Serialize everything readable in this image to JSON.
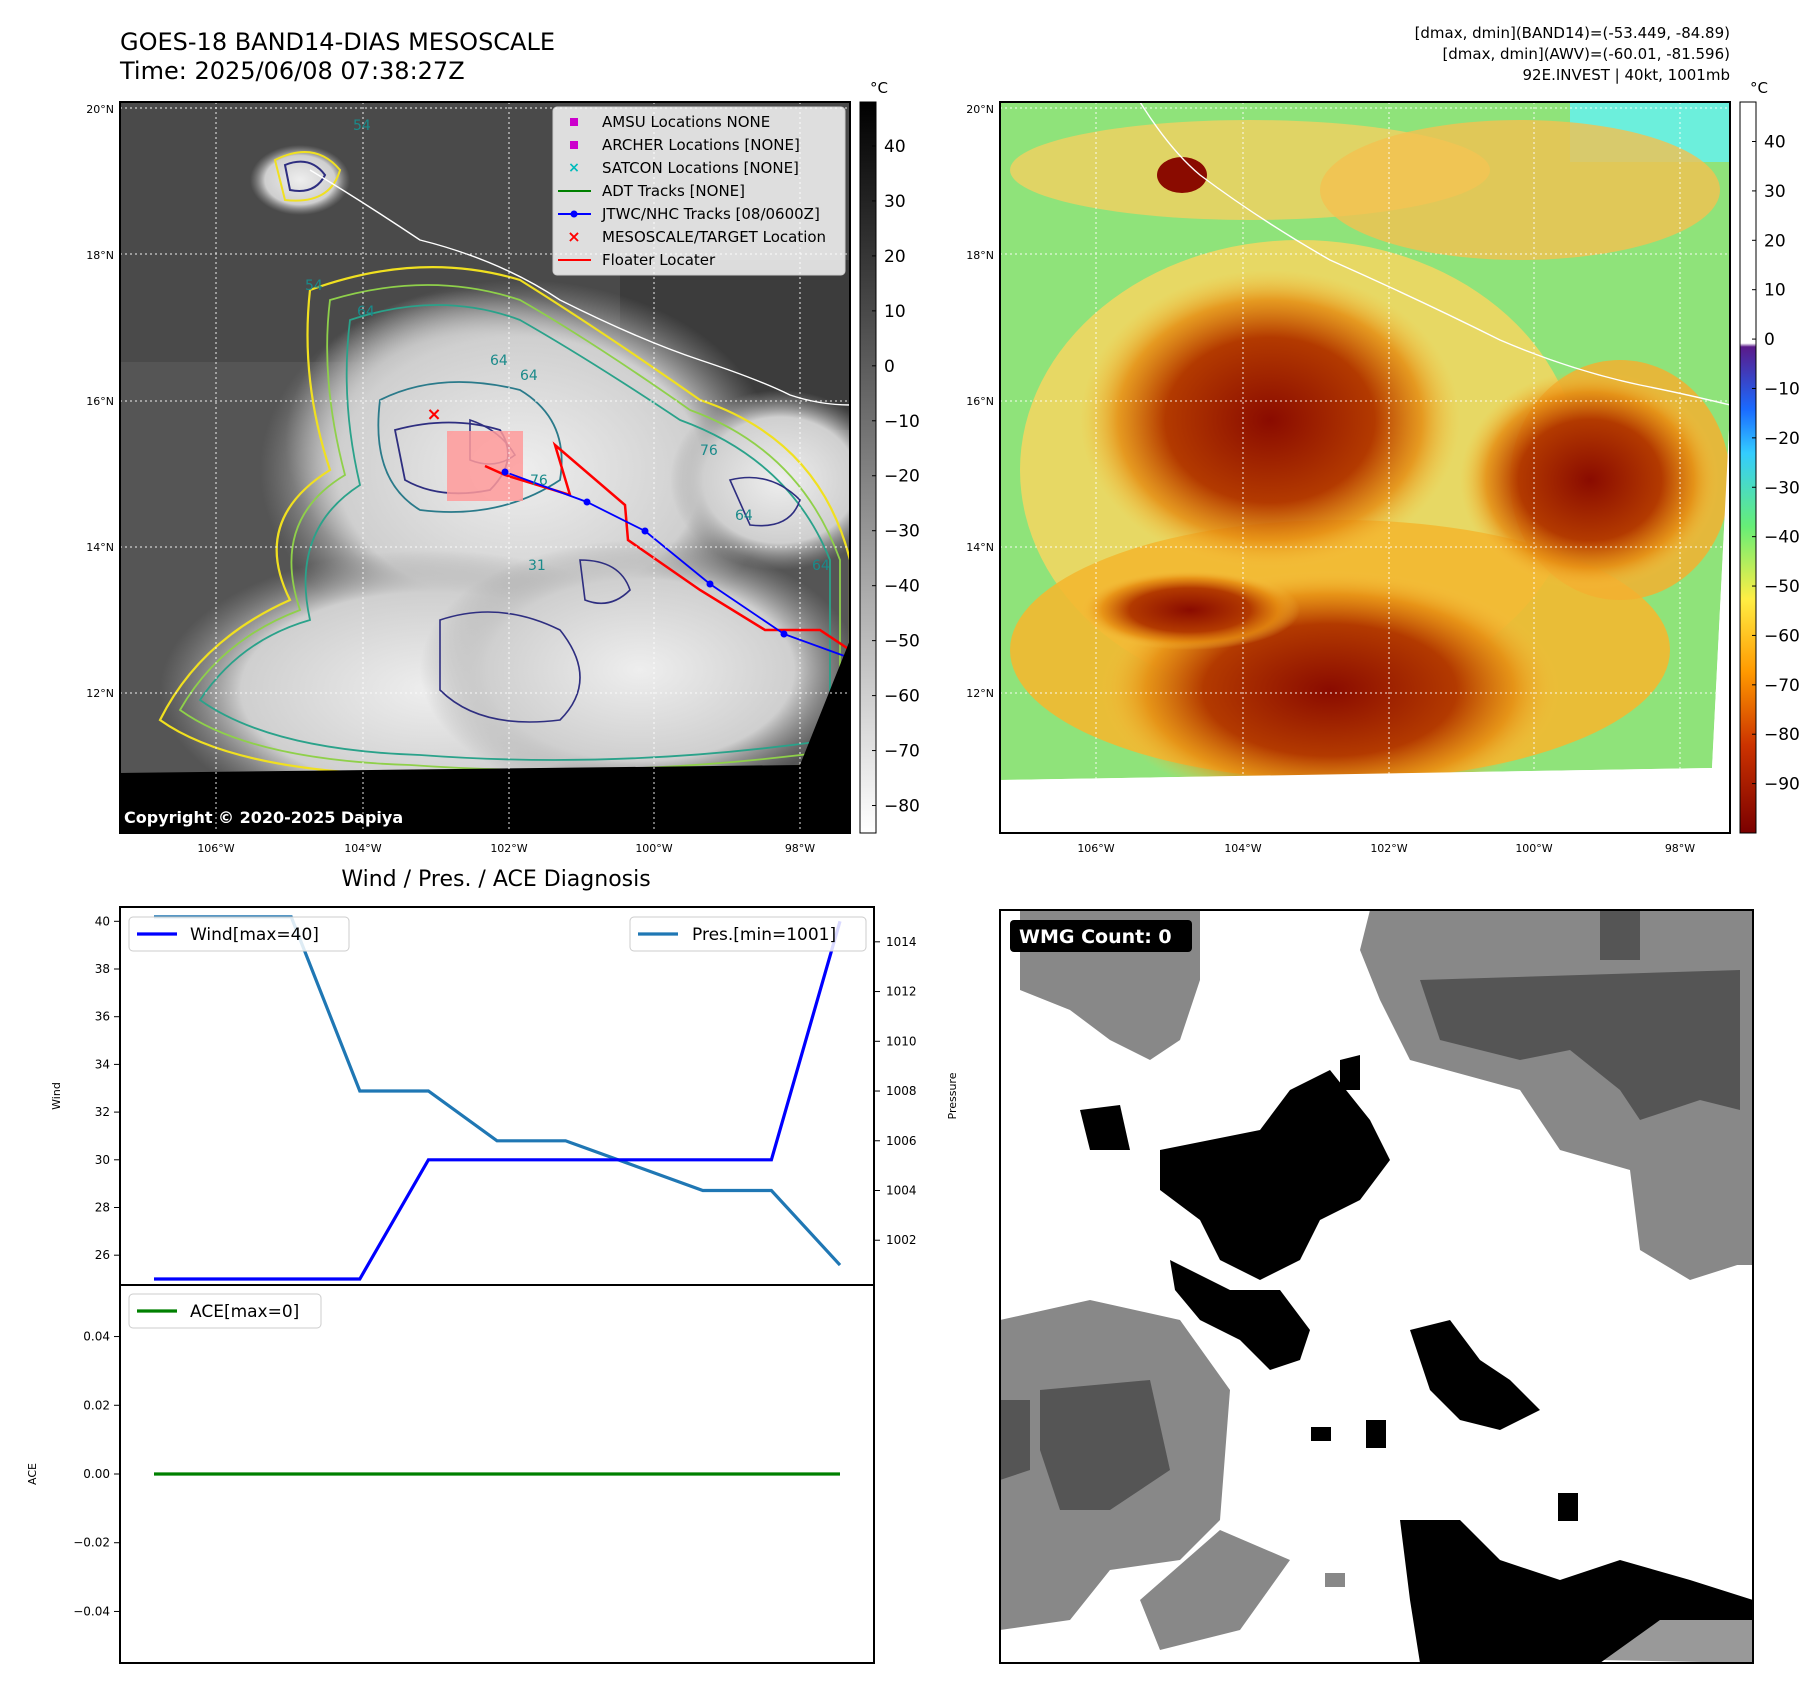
{
  "header": {
    "title_line1": "GOES-18 BAND14-DIAS MESOSCALE",
    "title_line2": "Time: 2025/06/08 07:38:27Z",
    "right_line1": "[dmax, dmin](BAND14)=(-53.449, -84.89)",
    "right_line2": "[dmax, dmin](AWV)=(-60.01, -81.596)",
    "right_line3": "92E.INVEST | 40kt, 1001mb"
  },
  "map_common": {
    "lat_labels": [
      "20°N",
      "18°N",
      "16°N",
      "14°N",
      "12°N"
    ],
    "lon_labels": [
      "106°W",
      "104°W",
      "102°W",
      "100°W",
      "98°W"
    ],
    "colorbar_unit": "°C"
  },
  "map_left": {
    "copyright": "Copyright © 2020-2025 Dapiya",
    "colorbar_ticks": [
      "40",
      "30",
      "20",
      "10",
      "0",
      "−10",
      "−20",
      "−30",
      "−40",
      "−50",
      "−60",
      "−70",
      "−80"
    ],
    "contour_labels": [
      "54",
      "64",
      "64",
      "76",
      "64",
      "64",
      "76",
      "64",
      "54",
      "31"
    ],
    "legend": [
      {
        "label": "AMSU Locations NONE",
        "color": "#cc00cc",
        "marker": "square"
      },
      {
        "label": "ARCHER Locations [NONE]",
        "color": "#cc00cc",
        "marker": "square"
      },
      {
        "label": "SATCON Locations [NONE]",
        "color": "#00bbbb",
        "marker": "x"
      },
      {
        "label": "ADT Tracks [NONE]",
        "color": "#008000",
        "marker": "line"
      },
      {
        "label": "JTWC/NHC Tracks [08/0600Z]",
        "color": "#0000ff",
        "marker": "line-dot"
      },
      {
        "label": "MESOSCALE/TARGET Location",
        "color": "#ff0000",
        "marker": "x"
      },
      {
        "label": "Floater Locater",
        "color": "#ff0000",
        "marker": "line"
      }
    ]
  },
  "map_right": {
    "colorbar_ticks": [
      "40",
      "30",
      "20",
      "10",
      "0",
      "−10",
      "−20",
      "−30",
      "−40",
      "−50",
      "−60",
      "−70",
      "−80",
      "−90"
    ]
  },
  "diag": {
    "title": "Wind / Pres. / ACE Diagnosis",
    "wind_axis_label": "Wind",
    "pressure_axis_label": "Pressure",
    "ace_axis_label": "ACE",
    "wind_ticks": [
      "40",
      "38",
      "36",
      "34",
      "32",
      "30",
      "28",
      "26"
    ],
    "pressure_ticks": [
      "1014",
      "1012",
      "1010",
      "1008",
      "1006",
      "1004",
      "1002"
    ],
    "ace_ticks": [
      "0.04",
      "0.02",
      "0.00",
      "−0.02",
      "−0.04"
    ]
  },
  "wmg": {
    "label": "WMG Count: 0"
  },
  "chart_data": [
    {
      "type": "line",
      "title": "Wind / Pres. / ACE Diagnosis",
      "ylabel": "Wind",
      "ylim": [
        24.75,
        40.6
      ],
      "series": [
        {
          "name": "Wind[max=40]",
          "color": "#0000ff",
          "values": [
            25,
            25,
            25,
            25,
            30,
            30,
            30,
            30,
            30,
            30,
            40
          ]
        }
      ]
    },
    {
      "type": "line",
      "ylabel": "Pressure",
      "ylim": [
        1000.2,
        1015.4
      ],
      "series": [
        {
          "name": "Pres.[min=1001]",
          "color": "#1f77b4",
          "values": [
            1015,
            1015,
            1015,
            1008,
            1008,
            1006,
            1006,
            1005,
            1004,
            1004,
            1001
          ]
        }
      ]
    },
    {
      "type": "line",
      "ylabel": "ACE",
      "ylim": [
        -0.055,
        0.055
      ],
      "series": [
        {
          "name": "ACE[max=0]",
          "color": "#008000",
          "values": [
            0,
            0,
            0,
            0,
            0,
            0,
            0,
            0,
            0,
            0,
            0
          ]
        }
      ]
    }
  ]
}
